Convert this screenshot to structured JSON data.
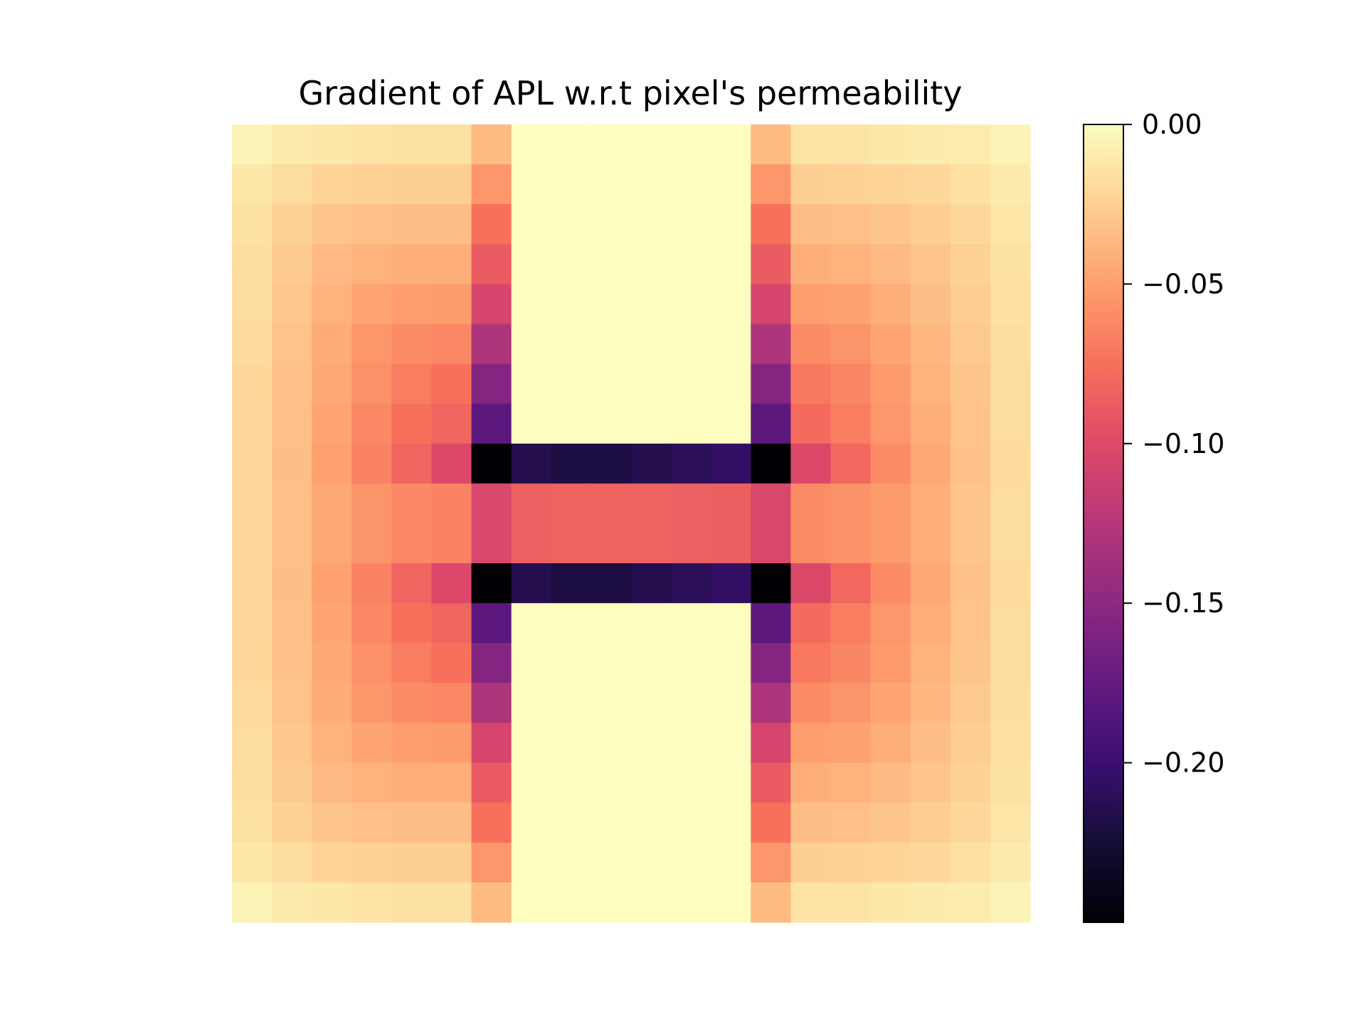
{
  "chart_data": {
    "type": "heatmap",
    "title": "Gradient of APL w.r.t pixel's permeability",
    "xlabel": "",
    "ylabel": "",
    "axes_visible": false,
    "grid": false,
    "colormap": "magma",
    "colorbar": {
      "position": "right",
      "vmin": -0.25,
      "vmax": 0.0,
      "ticks": [
        0.0,
        -0.05,
        -0.1,
        -0.15,
        -0.2
      ],
      "tick_labels": [
        "0.00",
        "−0.05",
        "−0.10",
        "−0.15",
        "−0.20"
      ]
    },
    "n_rows": 20,
    "n_cols": 20,
    "values": [
      [
        -0.005,
        -0.01,
        -0.012,
        -0.014,
        -0.015,
        -0.015,
        -0.035,
        0.0,
        0.0,
        0.0,
        0.0,
        0.0,
        0.0,
        -0.035,
        -0.014,
        -0.014,
        -0.012,
        -0.01,
        -0.009,
        -0.005
      ],
      [
        -0.012,
        -0.018,
        -0.022,
        -0.024,
        -0.025,
        -0.025,
        -0.055,
        0.0,
        0.0,
        0.0,
        0.0,
        0.0,
        0.0,
        -0.055,
        -0.025,
        -0.024,
        -0.022,
        -0.02,
        -0.016,
        -0.01
      ],
      [
        -0.015,
        -0.024,
        -0.03,
        -0.033,
        -0.034,
        -0.034,
        -0.075,
        0.0,
        0.0,
        0.0,
        0.0,
        0.0,
        0.0,
        -0.075,
        -0.034,
        -0.033,
        -0.03,
        -0.026,
        -0.02,
        -0.013
      ],
      [
        -0.017,
        -0.027,
        -0.036,
        -0.04,
        -0.042,
        -0.042,
        -0.088,
        0.0,
        0.0,
        0.0,
        0.0,
        0.0,
        0.0,
        -0.088,
        -0.042,
        -0.04,
        -0.036,
        -0.03,
        -0.024,
        -0.015
      ],
      [
        -0.018,
        -0.029,
        -0.04,
        -0.047,
        -0.05,
        -0.051,
        -0.105,
        0.0,
        0.0,
        0.0,
        0.0,
        0.0,
        0.0,
        -0.105,
        -0.05,
        -0.048,
        -0.042,
        -0.034,
        -0.026,
        -0.016
      ],
      [
        -0.019,
        -0.031,
        -0.043,
        -0.054,
        -0.06,
        -0.062,
        -0.13,
        0.0,
        0.0,
        0.0,
        0.0,
        0.0,
        0.0,
        -0.13,
        -0.06,
        -0.056,
        -0.047,
        -0.037,
        -0.028,
        -0.017
      ],
      [
        -0.02,
        -0.032,
        -0.045,
        -0.058,
        -0.068,
        -0.075,
        -0.155,
        0.0,
        0.0,
        0.0,
        0.0,
        0.0,
        0.0,
        -0.155,
        -0.07,
        -0.063,
        -0.052,
        -0.04,
        -0.03,
        -0.018
      ],
      [
        -0.02,
        -0.033,
        -0.047,
        -0.062,
        -0.075,
        -0.082,
        -0.18,
        0.0,
        0.0,
        0.0,
        0.0,
        0.0,
        0.0,
        -0.18,
        -0.078,
        -0.068,
        -0.055,
        -0.042,
        -0.031,
        -0.018
      ],
      [
        -0.02,
        -0.034,
        -0.049,
        -0.065,
        -0.082,
        -0.102,
        -0.25,
        -0.215,
        -0.22,
        -0.22,
        -0.215,
        -0.21,
        -0.205,
        -0.25,
        -0.102,
        -0.08,
        -0.06,
        -0.045,
        -0.032,
        -0.019
      ],
      [
        -0.02,
        -0.033,
        -0.045,
        -0.056,
        -0.062,
        -0.065,
        -0.103,
        -0.085,
        -0.084,
        -0.084,
        -0.084,
        -0.085,
        -0.086,
        -0.103,
        -0.06,
        -0.057,
        -0.052,
        -0.042,
        -0.03,
        -0.018
      ],
      [
        -0.02,
        -0.033,
        -0.045,
        -0.056,
        -0.062,
        -0.065,
        -0.103,
        -0.085,
        -0.084,
        -0.084,
        -0.084,
        -0.085,
        -0.086,
        -0.103,
        -0.06,
        -0.057,
        -0.052,
        -0.042,
        -0.03,
        -0.018
      ],
      [
        -0.02,
        -0.034,
        -0.049,
        -0.065,
        -0.082,
        -0.102,
        -0.25,
        -0.215,
        -0.22,
        -0.22,
        -0.215,
        -0.21,
        -0.205,
        -0.25,
        -0.102,
        -0.08,
        -0.06,
        -0.045,
        -0.032,
        -0.019
      ],
      [
        -0.02,
        -0.033,
        -0.047,
        -0.062,
        -0.075,
        -0.082,
        -0.18,
        0.0,
        0.0,
        0.0,
        0.0,
        0.0,
        0.0,
        -0.18,
        -0.078,
        -0.068,
        -0.055,
        -0.042,
        -0.031,
        -0.018
      ],
      [
        -0.02,
        -0.032,
        -0.045,
        -0.058,
        -0.068,
        -0.075,
        -0.155,
        0.0,
        0.0,
        0.0,
        0.0,
        0.0,
        0.0,
        -0.155,
        -0.07,
        -0.063,
        -0.052,
        -0.04,
        -0.03,
        -0.018
      ],
      [
        -0.019,
        -0.031,
        -0.043,
        -0.054,
        -0.06,
        -0.062,
        -0.13,
        0.0,
        0.0,
        0.0,
        0.0,
        0.0,
        0.0,
        -0.13,
        -0.06,
        -0.056,
        -0.047,
        -0.037,
        -0.028,
        -0.017
      ],
      [
        -0.018,
        -0.029,
        -0.04,
        -0.047,
        -0.05,
        -0.051,
        -0.105,
        0.0,
        0.0,
        0.0,
        0.0,
        0.0,
        0.0,
        -0.105,
        -0.05,
        -0.048,
        -0.042,
        -0.034,
        -0.026,
        -0.016
      ],
      [
        -0.017,
        -0.027,
        -0.036,
        -0.04,
        -0.042,
        -0.042,
        -0.088,
        0.0,
        0.0,
        0.0,
        0.0,
        0.0,
        0.0,
        -0.088,
        -0.042,
        -0.04,
        -0.036,
        -0.03,
        -0.024,
        -0.015
      ],
      [
        -0.015,
        -0.024,
        -0.03,
        -0.033,
        -0.034,
        -0.034,
        -0.075,
        0.0,
        0.0,
        0.0,
        0.0,
        0.0,
        0.0,
        -0.075,
        -0.034,
        -0.033,
        -0.03,
        -0.026,
        -0.02,
        -0.013
      ],
      [
        -0.012,
        -0.018,
        -0.022,
        -0.024,
        -0.025,
        -0.025,
        -0.055,
        0.0,
        0.0,
        0.0,
        0.0,
        0.0,
        0.0,
        -0.055,
        -0.025,
        -0.024,
        -0.022,
        -0.02,
        -0.016,
        -0.01
      ],
      [
        -0.005,
        -0.01,
        -0.012,
        -0.014,
        -0.015,
        -0.015,
        -0.035,
        0.0,
        0.0,
        0.0,
        0.0,
        0.0,
        0.0,
        -0.035,
        -0.014,
        -0.014,
        -0.012,
        -0.01,
        -0.009,
        -0.005
      ]
    ]
  }
}
